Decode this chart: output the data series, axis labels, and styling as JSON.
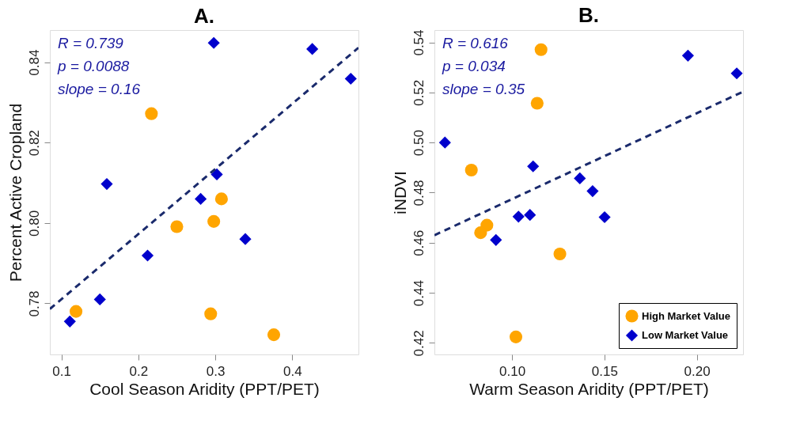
{
  "chart_data": [
    {
      "type": "scatter",
      "title": "A.",
      "xlabel": "Cool Season Aridity (PPT/PET)",
      "ylabel": "Percent  Active Cropland",
      "annotations": [
        "R = 0.739",
        "p = 0.0088",
        "slope = 0.16"
      ],
      "xlim": [
        0.085,
        0.486
      ],
      "ylim": [
        0.7673,
        0.848
      ],
      "xticks": [
        0.1,
        0.2,
        0.3,
        0.4
      ],
      "yticks": [
        0.78,
        {
          "value": 0.8,
          "label": "0.80"
        },
        0.82,
        0.84
      ],
      "grid": false,
      "legend": false,
      "series": [
        {
          "color": "#ffa500",
          "marker": "circle",
          "x": [
            0.217,
            0.308,
            0.298,
            0.25,
            0.119,
            0.294,
            0.376
          ],
          "values": [
            0.8272,
            0.806,
            0.8004,
            0.7991,
            0.778,
            0.7774,
            0.7722
          ]
        },
        {
          "color": "#0000cc",
          "marker": "diamond",
          "x": [
            0.298,
            0.426,
            0.476,
            0.302,
            0.159,
            0.281,
            0.339,
            0.212,
            0.15,
            0.111
          ],
          "values": [
            0.8448,
            0.8433,
            0.8359,
            0.8121,
            0.8097,
            0.806,
            0.796,
            0.7919,
            0.781,
            0.7755
          ]
        },
        {
          "type": "line",
          "color": "#1a2a6c",
          "line_style": "dashed",
          "x": [
            0.085,
            0.486
          ],
          "values": [
            0.7786,
            0.8436
          ]
        }
      ]
    },
    {
      "type": "scatter",
      "title": "B.",
      "xlabel": "Warm Season Aridity (PPT/PET)",
      "ylabel": "iNDVI",
      "annotations": [
        "R = 0.616",
        "p = 0.034",
        "slope = 0.35"
      ],
      "xlim": [
        0.058,
        0.225
      ],
      "ylim": [
        0.4154,
        0.5449
      ],
      "xticks": [
        {
          "value": 0.1,
          "label": "0.10"
        },
        0.15,
        {
          "value": 0.2,
          "label": "0.20"
        }
      ],
      "yticks": [
        0.42,
        0.44,
        0.46,
        0.48,
        {
          "value": 0.5,
          "label": "0.50"
        },
        0.52,
        0.54
      ],
      "grid": false,
      "legend": "bottom right",
      "series": [
        {
          "name": "High Market Value",
          "color": "#ffa500",
          "marker": "circle",
          "x": [
            0.1157,
            0.1136,
            0.078,
            0.0864,
            0.083,
            0.1259,
            0.1021
          ],
          "values": [
            0.5371,
            0.5157,
            0.489,
            0.467,
            0.464,
            0.4555,
            0.4224
          ]
        },
        {
          "name": "Low Market Value",
          "color": "#0000cc",
          "marker": "diamond",
          "x": [
            0.1952,
            0.2216,
            0.0637,
            0.1114,
            0.1367,
            0.1436,
            0.1097,
            0.1035,
            0.1501,
            0.0913
          ],
          "values": [
            0.5347,
            0.5276,
            0.5,
            0.4905,
            0.4857,
            0.4806,
            0.4711,
            0.4704,
            0.4702,
            0.4611
          ]
        },
        {
          "type": "line",
          "color": "#1a2a6c",
          "line_style": "dashed",
          "x": [
            0.058,
            0.225
          ],
          "values": [
            0.463,
            0.5203
          ]
        }
      ]
    }
  ]
}
